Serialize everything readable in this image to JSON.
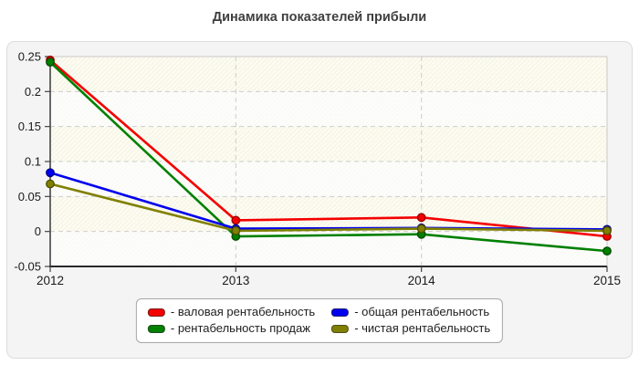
{
  "title": "Динамика показателей прибыли",
  "chart_data": {
    "type": "line",
    "title": "Динамика показателей прибыли",
    "xlabel": "",
    "ylabel": "",
    "categories": [
      "2012",
      "2013",
      "2014",
      "2015"
    ],
    "series": [
      {
        "name": "валовая рентабельность",
        "color": "#f40000",
        "marker_border": "#9c0000",
        "values": [
          0.245,
          0.016,
          0.02,
          -0.007
        ]
      },
      {
        "name": "рентабельность продаж",
        "color": "#008000",
        "marker_border": "#004d00",
        "values": [
          0.242,
          -0.007,
          -0.004,
          -0.028
        ]
      },
      {
        "name": "общая рентабельность",
        "color": "#0000ee",
        "marker_border": "#000090",
        "values": [
          0.084,
          0.004,
          0.005,
          0.003
        ]
      },
      {
        "name": "чистая рентабельность",
        "color": "#808000",
        "marker_border": "#4f4f00",
        "values": [
          0.068,
          0.001,
          0.004,
          0.001
        ]
      }
    ],
    "ylim": [
      -0.05,
      0.25
    ],
    "y_tick_values": [
      0.25,
      0.2,
      0.15,
      0.1,
      0.05,
      0,
      -0.05
    ],
    "y_tick_labels": [
      "0.25",
      "0.2",
      "0.15",
      "0.1",
      "0.05",
      "0",
      "-0.05"
    ],
    "grid": "dashed",
    "legend_position": "bottom",
    "plot_band_colors": [
      "#f8f6e6",
      "#fafaf7"
    ]
  },
  "legend": {
    "items": [
      {
        "label": "- валовая рентабельность",
        "color": "#f40000",
        "border": "#7a2020"
      },
      {
        "label": "- общая рентабельность",
        "color": "#0000ee",
        "border": "#20207a"
      },
      {
        "label": "- рентабельность продаж",
        "color": "#008000",
        "border": "#204d20"
      },
      {
        "label": "- чистая рентабельность",
        "color": "#808000",
        "border": "#4f4f20"
      }
    ]
  }
}
